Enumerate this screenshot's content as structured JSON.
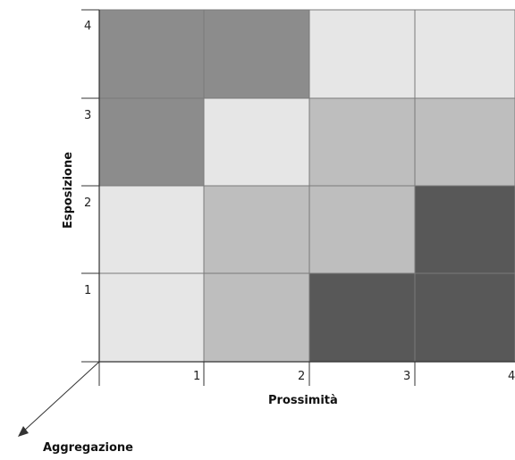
{
  "matrix": {
    "y_axis_title": "Esposizione",
    "x_axis_title": "Prossimità",
    "z_axis_title": "Aggregazione",
    "y_ticks": [
      "1",
      "2",
      "3",
      "4"
    ],
    "x_ticks": [
      "1",
      "2",
      "3",
      "4"
    ],
    "shade_legend": {
      "1": "#e6e6e6",
      "2": "#bebebe",
      "3": "#8c8c8c",
      "4": "#585858"
    },
    "cells": [
      [
        3,
        3,
        1,
        1
      ],
      [
        3,
        1,
        2,
        2
      ],
      [
        1,
        2,
        2,
        4
      ],
      [
        1,
        2,
        4,
        4
      ]
    ]
  }
}
